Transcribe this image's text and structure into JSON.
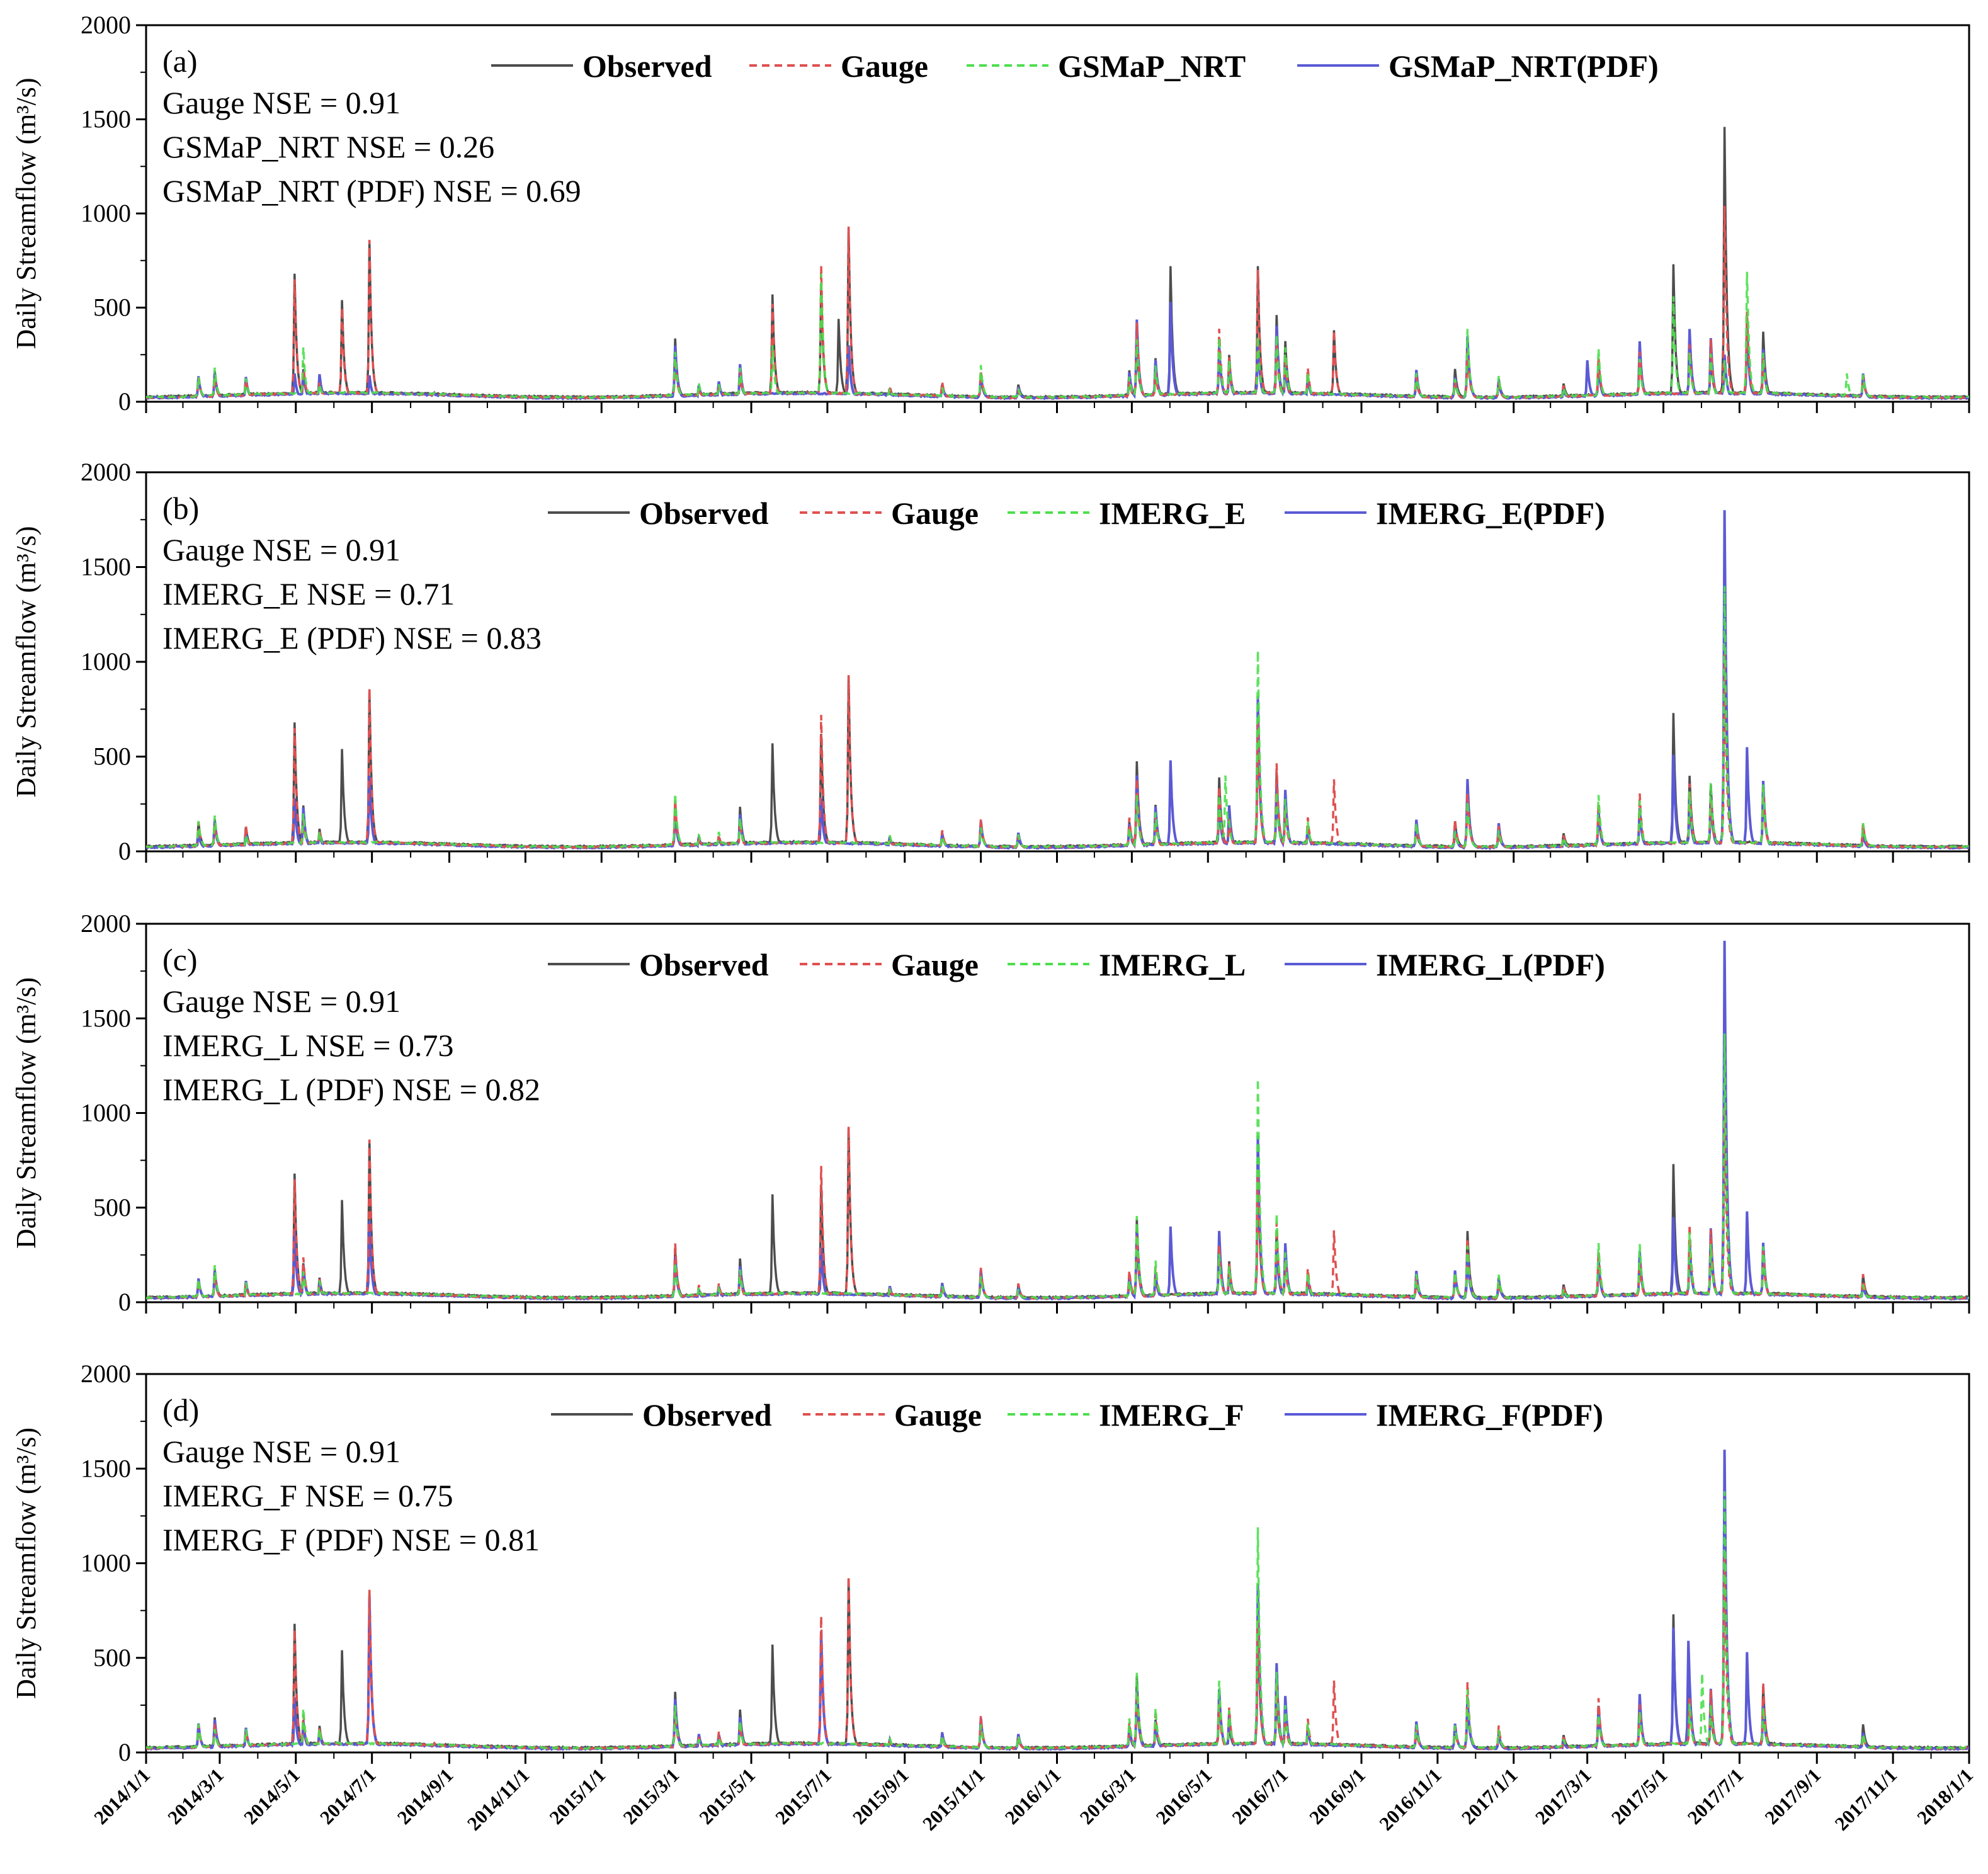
{
  "chart_data": [
    {
      "type": "line",
      "panel_label": "(a)",
      "ylabel": "Daily Streamflow (m³/s)",
      "ylim": [
        0,
        2000
      ],
      "yticks": [
        0,
        500,
        1000,
        1500,
        2000
      ],
      "xlim": [
        "2014/1/1",
        "2018/1/1"
      ],
      "legend_placement": "top",
      "annotations": [
        "Gauge NSE = 0.91",
        "GSMaP_NRT NSE = 0.26",
        "GSMaP_NRT (PDF) NSE = 0.69"
      ],
      "series": [
        {
          "name": "Observed",
          "color": "#4d4d4d",
          "style": "solid",
          "peaks": [
            [
              "2014/4/30",
              680
            ],
            [
              "2014/6/7",
              540
            ],
            [
              "2014/6/29",
              850
            ],
            [
              "2015/5/18",
              570
            ],
            [
              "2015/6/26",
              620
            ],
            [
              "2015/7/10",
              440
            ],
            [
              "2015/7/18",
              920
            ],
            [
              "2016/4/1",
              720
            ],
            [
              "2016/6/10",
              720
            ],
            [
              "2016/8/10",
              380
            ],
            [
              "2017/5/9",
              730
            ],
            [
              "2017/6/19",
              1460
            ],
            [
              "2017/7/7",
              450
            ]
          ]
        },
        {
          "name": "Gauge",
          "color": "#e05050",
          "style": "dashed",
          "peaks": [
            [
              "2014/4/30",
              650
            ],
            [
              "2014/6/7",
              500
            ],
            [
              "2014/6/29",
              860
            ],
            [
              "2015/5/18",
              520
            ],
            [
              "2015/6/26",
              720
            ],
            [
              "2015/7/18",
              930
            ],
            [
              "2016/6/10",
              700
            ],
            [
              "2016/8/10",
              380
            ],
            [
              "2017/6/19",
              1040
            ],
            [
              "2017/7/7",
              480
            ]
          ]
        },
        {
          "name": "GSMaP_NRT",
          "color": "#4ddf4d",
          "style": "dashed",
          "peaks": [
            [
              "2014/5/7",
              290
            ],
            [
              "2015/5/18",
              300
            ],
            [
              "2015/6/26",
              680
            ],
            [
              "2016/6/10",
              350
            ],
            [
              "2017/5/9",
              560
            ],
            [
              "2017/6/19",
              220
            ],
            [
              "2017/7/7",
              690
            ],
            [
              "2017/9/25",
              150
            ]
          ]
        },
        {
          "name": "GSMaP_NRT(PDF)",
          "color": "#5a5ad6",
          "style": "solid",
          "peaks": [
            [
              "2014/4/30",
              150
            ],
            [
              "2014/6/29",
              140
            ],
            [
              "2015/3/1",
              280
            ],
            [
              "2015/7/18",
              300
            ],
            [
              "2016/4/1",
              530
            ],
            [
              "2016/6/10",
              330
            ],
            [
              "2017/3/1",
              220
            ],
            [
              "2017/6/19",
              250
            ],
            [
              "2017/7/7",
              400
            ]
          ]
        }
      ]
    },
    {
      "type": "line",
      "panel_label": "(b)",
      "ylabel": "Daily Streamflow (m³/s)",
      "ylim": [
        0,
        2000
      ],
      "yticks": [
        0,
        500,
        1000,
        1500,
        2000
      ],
      "xlim": [
        "2014/1/1",
        "2018/1/1"
      ],
      "legend_placement": "top",
      "annotations": [
        "Gauge NSE = 0.91",
        "IMERG_E NSE = 0.71",
        "IMERG_E (PDF) NSE = 0.83"
      ],
      "series": [
        {
          "name": "Observed",
          "color": "#4d4d4d",
          "style": "solid",
          "peaks": [
            [
              "2014/4/30",
              680
            ],
            [
              "2014/6/7",
              540
            ],
            [
              "2014/6/29",
              850
            ],
            [
              "2015/5/18",
              570
            ],
            [
              "2015/6/26",
              620
            ],
            [
              "2015/7/18",
              920
            ],
            [
              "2016/6/10",
              720
            ],
            [
              "2017/5/9",
              730
            ],
            [
              "2017/6/19",
              1460
            ]
          ]
        },
        {
          "name": "Gauge",
          "color": "#e05050",
          "style": "dashed",
          "peaks": [
            [
              "2014/4/30",
              650
            ],
            [
              "2014/6/29",
              860
            ],
            [
              "2015/6/26",
              720
            ],
            [
              "2015/7/18",
              930
            ],
            [
              "2016/6/10",
              700
            ],
            [
              "2016/8/10",
              380
            ],
            [
              "2017/6/19",
              1040
            ]
          ]
        },
        {
          "name": "IMERG_E",
          "color": "#4ddf4d",
          "style": "dashed",
          "peaks": [
            [
              "2016/6/10",
              1060
            ],
            [
              "2016/5/15",
              400
            ],
            [
              "2017/6/19",
              1400
            ]
          ]
        },
        {
          "name": "IMERG_E(PDF)",
          "color": "#5a5ad6",
          "style": "solid",
          "peaks": [
            [
              "2014/4/30",
              280
            ],
            [
              "2014/6/29",
              400
            ],
            [
              "2015/6/26",
              280
            ],
            [
              "2016/4/1",
              480
            ],
            [
              "2016/6/10",
              820
            ],
            [
              "2017/5/9",
              510
            ],
            [
              "2017/6/19",
              1800
            ],
            [
              "2017/7/7",
              550
            ]
          ]
        }
      ]
    },
    {
      "type": "line",
      "panel_label": "(c)",
      "ylabel": "Daily Streamflow (m³/s)",
      "ylim": [
        0,
        2000
      ],
      "yticks": [
        0,
        500,
        1000,
        1500,
        2000
      ],
      "xlim": [
        "2014/1/1",
        "2018/1/1"
      ],
      "legend_placement": "top",
      "annotations": [
        "Gauge NSE  = 0.91",
        "IMERG_L NSE = 0.73",
        "IMERG_L (PDF) NSE = 0.82"
      ],
      "series": [
        {
          "name": "Observed",
          "color": "#4d4d4d",
          "style": "solid",
          "peaks": [
            [
              "2014/4/30",
              680
            ],
            [
              "2014/6/7",
              540
            ],
            [
              "2014/6/29",
              850
            ],
            [
              "2015/5/18",
              570
            ],
            [
              "2015/6/26",
              620
            ],
            [
              "2015/7/18",
              920
            ],
            [
              "2016/6/10",
              720
            ],
            [
              "2017/5/9",
              730
            ],
            [
              "2017/6/19",
              1460
            ]
          ]
        },
        {
          "name": "Gauge",
          "color": "#e05050",
          "style": "dashed",
          "peaks": [
            [
              "2014/4/30",
              650
            ],
            [
              "2014/6/29",
              860
            ],
            [
              "2015/6/26",
              720
            ],
            [
              "2015/7/18",
              930
            ],
            [
              "2016/6/10",
              700
            ],
            [
              "2016/8/10",
              380
            ],
            [
              "2017/6/19",
              1040
            ]
          ]
        },
        {
          "name": "IMERG_L",
          "color": "#4ddf4d",
          "style": "dashed",
          "peaks": [
            [
              "2016/6/10",
              1180
            ],
            [
              "2017/6/19",
              1420
            ]
          ]
        },
        {
          "name": "IMERG_L(PDF)",
          "color": "#5a5ad6",
          "style": "solid",
          "peaks": [
            [
              "2014/4/30",
              380
            ],
            [
              "2014/6/29",
              430
            ],
            [
              "2015/6/26",
              290
            ],
            [
              "2016/4/1",
              400
            ],
            [
              "2016/6/10",
              880
            ],
            [
              "2017/5/9",
              450
            ],
            [
              "2017/6/19",
              1910
            ],
            [
              "2017/7/7",
              480
            ]
          ]
        }
      ]
    },
    {
      "type": "line",
      "panel_label": "(d)",
      "ylabel": "Daily Streamflow (m³/s)",
      "ylim": [
        0,
        2000
      ],
      "yticks": [
        0,
        500,
        1000,
        1500,
        2000
      ],
      "xlim": [
        "2014/1/1",
        "2018/1/1"
      ],
      "xticks": [
        "2014/1/1",
        "2014/3/1",
        "2014/5/1",
        "2014/7/1",
        "2014/9/1",
        "2014/11/1",
        "2015/1/1",
        "2015/3/1",
        "2015/5/1",
        "2015/7/1",
        "2015/9/1",
        "2015/11/1",
        "2016/1/1",
        "2016/3/1",
        "2016/5/1",
        "2016/7/1",
        "2016/9/1",
        "2016/11/1",
        "2017/1/1",
        "2017/3/1",
        "2017/5/1",
        "2017/7/1",
        "2017/9/1",
        "2017/11/1",
        "2018/1/1"
      ],
      "legend_placement": "top",
      "annotations": [
        "Gauge NSE = 0.91",
        "IMERG_F NSE = 0.75",
        "IMERG_F (PDF) NSE = 0.81"
      ],
      "series": [
        {
          "name": "Observed",
          "color": "#4d4d4d",
          "style": "solid",
          "peaks": [
            [
              "2014/4/30",
              680
            ],
            [
              "2014/6/7",
              540
            ],
            [
              "2014/6/29",
              850
            ],
            [
              "2015/5/18",
              570
            ],
            [
              "2015/6/26",
              620
            ],
            [
              "2015/7/18",
              920
            ],
            [
              "2016/6/10",
              720
            ],
            [
              "2017/5/9",
              730
            ],
            [
              "2017/6/19",
              1460
            ]
          ]
        },
        {
          "name": "Gauge",
          "color": "#e05050",
          "style": "dashed",
          "peaks": [
            [
              "2014/4/30",
              650
            ],
            [
              "2014/6/29",
              860
            ],
            [
              "2015/6/26",
              720
            ],
            [
              "2015/7/18",
              930
            ],
            [
              "2016/6/10",
              700
            ],
            [
              "2016/8/10",
              380
            ],
            [
              "2017/6/19",
              1040
            ]
          ]
        },
        {
          "name": "IMERG_F",
          "color": "#4ddf4d",
          "style": "dashed",
          "peaks": [
            [
              "2016/6/10",
              1190
            ],
            [
              "2017/6/19",
              1380
            ],
            [
              "2017/6/1",
              420
            ]
          ]
        },
        {
          "name": "IMERG_F(PDF)",
          "color": "#5a5ad6",
          "style": "solid",
          "peaks": [
            [
              "2014/4/30",
              290
            ],
            [
              "2014/6/29",
              820
            ],
            [
              "2015/6/26",
              640
            ],
            [
              "2016/6/10",
              890
            ],
            [
              "2017/5/9",
              660
            ],
            [
              "2017/5/21",
              590
            ],
            [
              "2017/6/19",
              1600
            ],
            [
              "2017/7/7",
              530
            ]
          ]
        }
      ]
    }
  ]
}
